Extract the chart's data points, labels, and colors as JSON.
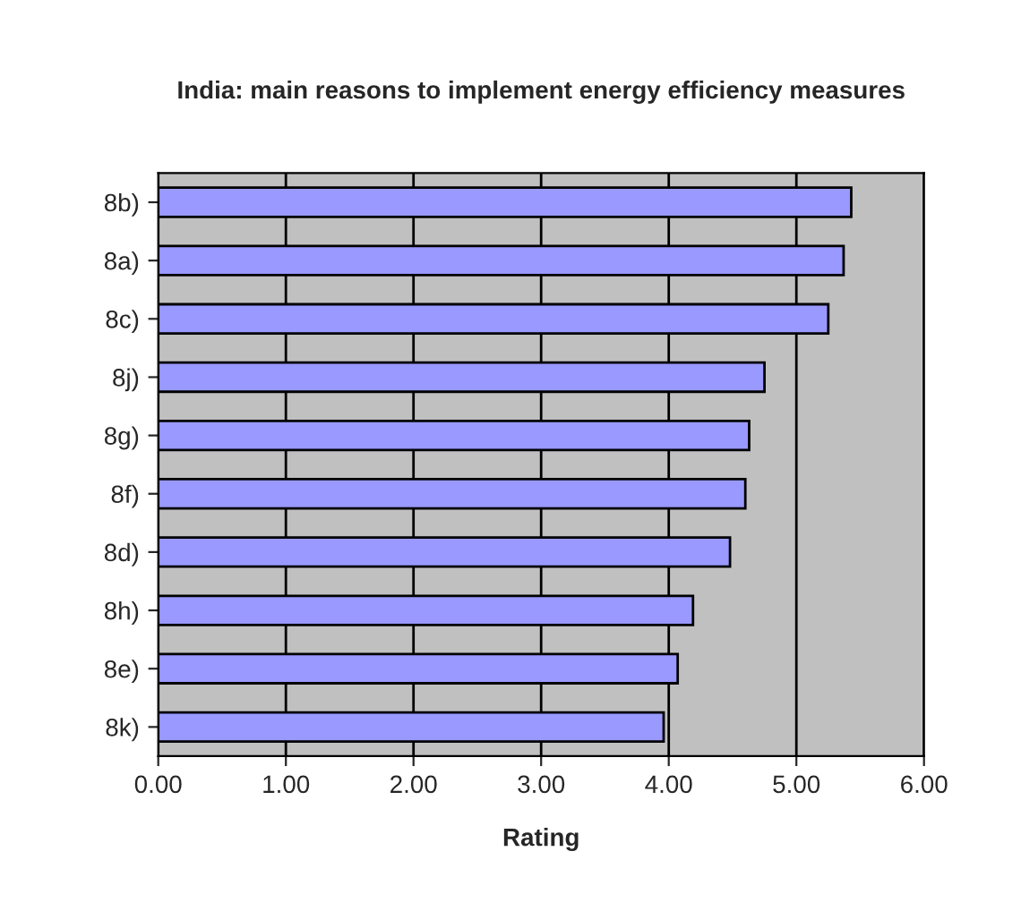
{
  "chart_data": {
    "type": "bar",
    "orientation": "horizontal",
    "title": "India: main reasons to implement energy efficiency measures",
    "xlabel": "Rating",
    "categories": [
      "8b)",
      "8a)",
      "8c)",
      "8j)",
      "8g)",
      "8f)",
      "8d)",
      "8h)",
      "8e)",
      "8k)"
    ],
    "values": [
      5.43,
      5.37,
      5.25,
      4.75,
      4.63,
      4.6,
      4.48,
      4.19,
      4.07,
      3.96
    ],
    "color": "#9999ff",
    "xlim": [
      0,
      6
    ],
    "xticks": [
      {
        "value": 0,
        "label": "0.00"
      },
      {
        "value": 1,
        "label": "1.00"
      },
      {
        "value": 2,
        "label": "2.00"
      },
      {
        "value": 3,
        "label": "3.00"
      },
      {
        "value": 4,
        "label": "4.00"
      },
      {
        "value": 5,
        "label": "5.00"
      },
      {
        "value": 6,
        "label": "6.00"
      }
    ],
    "grid": "x"
  }
}
